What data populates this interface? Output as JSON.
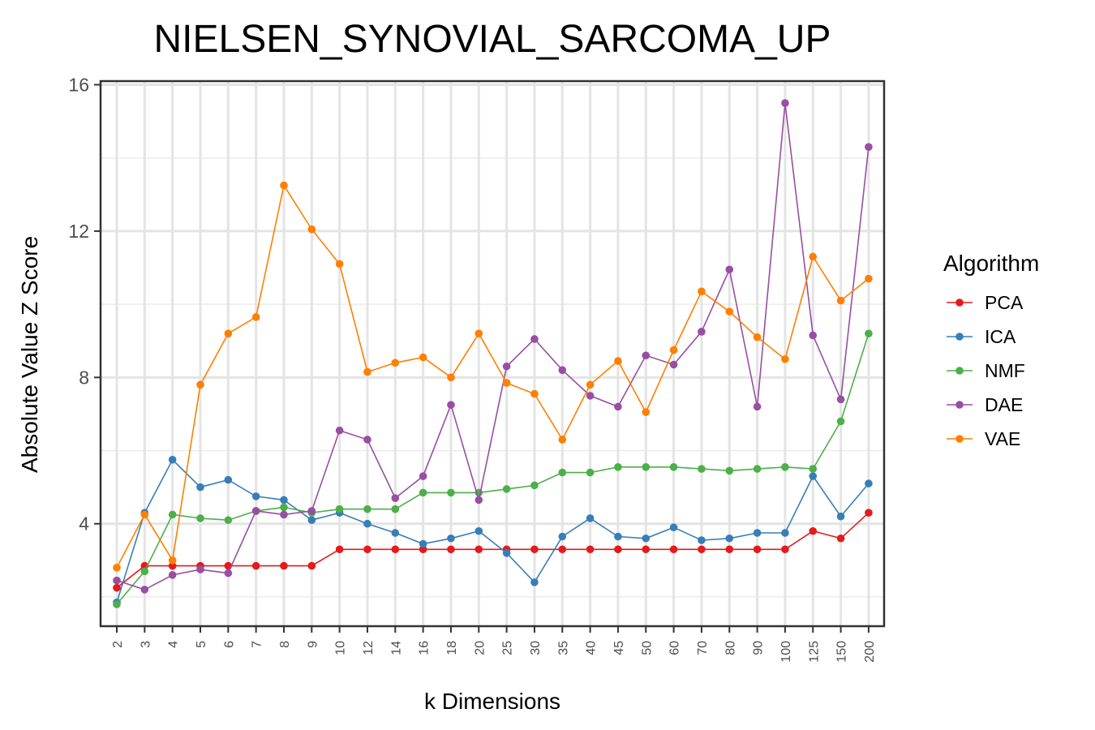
{
  "chart_data": {
    "type": "line",
    "title": "NIELSEN_SYNOVIAL_SARCOMA_UP",
    "xlabel": "k Dimensions",
    "ylabel": "Absolute Value Z Score",
    "categories": [
      "2",
      "3",
      "4",
      "5",
      "6",
      "7",
      "8",
      "9",
      "10",
      "12",
      "14",
      "16",
      "18",
      "20",
      "25",
      "30",
      "35",
      "40",
      "45",
      "50",
      "60",
      "70",
      "80",
      "90",
      "100",
      "125",
      "150",
      "200"
    ],
    "ylim": [
      1.2,
      16.1
    ],
    "yticks": [
      "4",
      "8",
      "12",
      "16"
    ],
    "ytick_values": [
      4,
      8,
      12,
      16
    ],
    "grid": true,
    "legend": {
      "title": "Algorithm",
      "position": "right"
    },
    "series": [
      {
        "name": "PCA",
        "color": "#e41a1c",
        "values": [
          2.25,
          2.85,
          2.85,
          2.85,
          2.85,
          2.85,
          2.85,
          2.85,
          3.3,
          3.3,
          3.3,
          3.3,
          3.3,
          3.3,
          3.3,
          3.3,
          3.3,
          3.3,
          3.3,
          3.3,
          3.3,
          3.3,
          3.3,
          3.3,
          3.3,
          3.8,
          3.6,
          4.3
        ]
      },
      {
        "name": "ICA",
        "color": "#377eb8",
        "values": [
          1.85,
          4.3,
          5.75,
          5.0,
          5.2,
          4.75,
          4.65,
          4.1,
          4.3,
          4.0,
          3.75,
          3.45,
          3.6,
          3.8,
          3.2,
          2.4,
          3.65,
          4.15,
          3.65,
          3.6,
          3.9,
          3.55,
          3.6,
          3.75,
          3.75,
          5.3,
          4.2,
          5.1
        ]
      },
      {
        "name": "NMF",
        "color": "#4daf4a",
        "values": [
          1.8,
          2.7,
          4.25,
          4.15,
          4.1,
          4.35,
          4.45,
          4.3,
          4.4,
          4.4,
          4.4,
          4.85,
          4.85,
          4.85,
          4.95,
          5.05,
          5.4,
          5.4,
          5.55,
          5.55,
          5.55,
          5.5,
          5.45,
          5.5,
          5.55,
          5.5,
          6.8,
          9.2
        ]
      },
      {
        "name": "DAE",
        "color": "#984ea3",
        "values": [
          2.45,
          2.2,
          2.6,
          2.75,
          2.65,
          4.35,
          4.25,
          4.35,
          6.55,
          6.3,
          4.7,
          5.3,
          7.25,
          4.65,
          8.3,
          9.05,
          8.2,
          7.5,
          7.2,
          8.6,
          8.35,
          9.25,
          10.95,
          7.2,
          15.5,
          9.15,
          7.4,
          14.3
        ]
      },
      {
        "name": "VAE",
        "color": "#ff7f00",
        "values": [
          2.8,
          4.25,
          3.0,
          7.8,
          9.2,
          9.65,
          13.25,
          12.05,
          11.1,
          8.15,
          8.4,
          8.55,
          8.0,
          9.2,
          7.85,
          7.55,
          6.3,
          7.8,
          8.45,
          7.05,
          8.75,
          10.35,
          9.8,
          9.1,
          8.5,
          11.3,
          10.1,
          10.7
        ]
      }
    ]
  }
}
